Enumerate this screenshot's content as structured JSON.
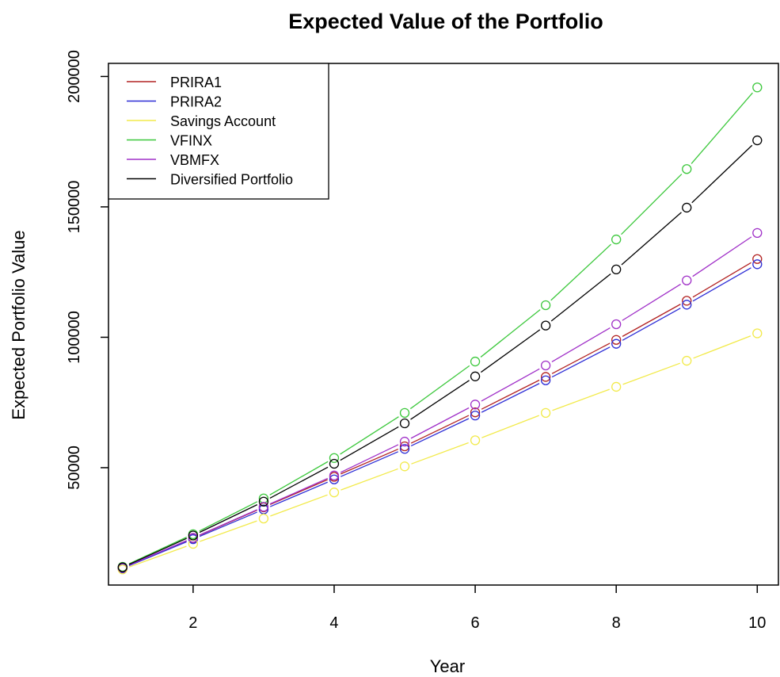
{
  "chart_data": {
    "type": "line",
    "title": "Expected Value of the Portfolio",
    "xlabel": "Year",
    "ylabel": "Expected Portfolio Value",
    "xlim": [
      0.8,
      10.3
    ],
    "ylim": [
      5000,
      205000
    ],
    "x_ticks": [
      2,
      4,
      6,
      8,
      10
    ],
    "y_ticks": [
      50000,
      100000,
      150000,
      200000
    ],
    "grid": false,
    "legend_position": "top-left",
    "x": [
      1,
      2,
      3,
      4,
      5,
      6,
      7,
      8,
      9,
      10
    ],
    "series": [
      {
        "name": "PRIRA1",
        "color": "#b22222",
        "values": [
          11500,
          23000,
          34800,
          46500,
          58200,
          71200,
          84800,
          99000,
          114000,
          130000
        ]
      },
      {
        "name": "PRIRA2",
        "color": "#2e2ed6",
        "values": [
          11400,
          22600,
          34000,
          45500,
          57200,
          70000,
          83500,
          97500,
          112500,
          128000
        ]
      },
      {
        "name": "Savings Account",
        "color": "#f2ea4a",
        "values": [
          11000,
          20800,
          30500,
          40500,
          50500,
          60500,
          71000,
          81000,
          91000,
          101500
        ]
      },
      {
        "name": "VFINX",
        "color": "#3cc83c",
        "values": [
          12000,
          24500,
          38200,
          53700,
          71000,
          90700,
          112300,
          137500,
          164500,
          195800
        ]
      },
      {
        "name": "VBMFX",
        "color": "#a030c8",
        "values": [
          11600,
          23100,
          35000,
          47000,
          60000,
          74200,
          89200,
          105000,
          121800,
          140000
        ]
      },
      {
        "name": "Diversified Portfolio",
        "color": "#000000",
        "values": [
          11800,
          24000,
          37000,
          51500,
          67000,
          85000,
          104500,
          126000,
          149700,
          175500
        ]
      }
    ]
  }
}
